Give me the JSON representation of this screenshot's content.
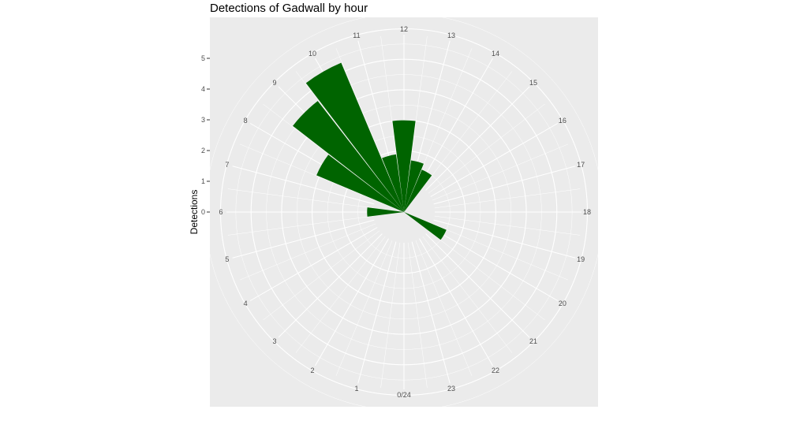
{
  "title": "Detections of Gadwall by hour",
  "chart_data": {
    "type": "bar",
    "coord": "polar",
    "title": "Detections of Gadwall by hour",
    "xlabel": "",
    "ylabel": "Detections",
    "ylim": [
      0,
      5
    ],
    "yticks": [
      0,
      1,
      2,
      3,
      4,
      5
    ],
    "categories": [
      "0/24",
      "1",
      "2",
      "3",
      "4",
      "5",
      "6",
      "7",
      "8",
      "9",
      "10",
      "11",
      "12",
      "13",
      "14",
      "15",
      "16",
      "17",
      "18",
      "19",
      "20",
      "21",
      "22",
      "23"
    ],
    "values": [
      0,
      0,
      0,
      0,
      0,
      0,
      0.2,
      0,
      2.1,
      3.6,
      4.3,
      0.9,
      2.0,
      0.7,
      0.5,
      0,
      0,
      0,
      0,
      0,
      0.5,
      0,
      0,
      0
    ],
    "bar_color": "#006400",
    "panel_color": "#ebebeb",
    "grid_color": "#ffffff",
    "grid": true
  }
}
